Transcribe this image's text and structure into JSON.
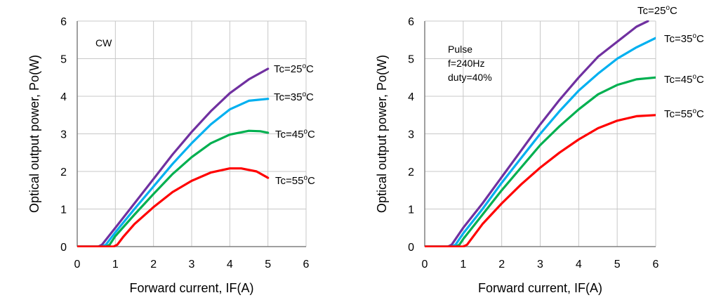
{
  "chart_data": [
    {
      "type": "line",
      "annotation": [
        "CW"
      ],
      "xlabel": "Forward current, IF(A)",
      "ylabel": "Optical output power, Po(W)",
      "xlim": [
        0,
        6
      ],
      "ylim": [
        0,
        6
      ],
      "xticks": [
        "0",
        "1",
        "2",
        "3",
        "4",
        "5",
        "6"
      ],
      "yticks": [
        "0",
        "1",
        "2",
        "3",
        "4",
        "5",
        "6"
      ],
      "grid": true,
      "series": [
        {
          "name": "Tc=25oC",
          "color": "#7030a0",
          "points": [
            [
              0,
              0
            ],
            [
              0.55,
              0
            ],
            [
              0.65,
              0.05
            ],
            [
              1,
              0.5
            ],
            [
              1.5,
              1.15
            ],
            [
              2,
              1.8
            ],
            [
              2.5,
              2.45
            ],
            [
              3,
              3.05
            ],
            [
              3.5,
              3.6
            ],
            [
              4,
              4.08
            ],
            [
              4.5,
              4.45
            ],
            [
              5,
              4.73
            ]
          ]
        },
        {
          "name": "Tc=35oC",
          "color": "#00b0f0",
          "points": [
            [
              0,
              0
            ],
            [
              0.65,
              0
            ],
            [
              0.75,
              0.05
            ],
            [
              1,
              0.38
            ],
            [
              1.5,
              1.0
            ],
            [
              2,
              1.6
            ],
            [
              2.5,
              2.2
            ],
            [
              3,
              2.75
            ],
            [
              3.5,
              3.25
            ],
            [
              4,
              3.65
            ],
            [
              4.5,
              3.88
            ],
            [
              5,
              3.93
            ]
          ]
        },
        {
          "name": "Tc=45oC",
          "color": "#00b050",
          "points": [
            [
              0,
              0
            ],
            [
              0.75,
              0
            ],
            [
              0.85,
              0.05
            ],
            [
              1,
              0.28
            ],
            [
              1.5,
              0.85
            ],
            [
              2,
              1.4
            ],
            [
              2.5,
              1.93
            ],
            [
              3,
              2.38
            ],
            [
              3.5,
              2.75
            ],
            [
              4,
              2.98
            ],
            [
              4.5,
              3.08
            ],
            [
              4.8,
              3.07
            ],
            [
              5,
              3.03
            ]
          ]
        },
        {
          "name": "Tc=55oC",
          "color": "#ff0000",
          "points": [
            [
              0,
              0
            ],
            [
              0.95,
              0
            ],
            [
              1.05,
              0.05
            ],
            [
              1.2,
              0.25
            ],
            [
              1.5,
              0.6
            ],
            [
              2,
              1.05
            ],
            [
              2.5,
              1.45
            ],
            [
              3,
              1.75
            ],
            [
              3.5,
              1.97
            ],
            [
              4,
              2.08
            ],
            [
              4.3,
              2.08
            ],
            [
              4.7,
              2.0
            ],
            [
              5,
              1.83
            ]
          ]
        }
      ]
    },
    {
      "type": "line",
      "annotation": [
        "Pulse",
        "f=240Hz",
        "duty=40%"
      ],
      "xlabel": "Forward current, IF(A)",
      "ylabel": "Optical output power, Po(W)",
      "xlim": [
        0,
        6
      ],
      "ylim": [
        0,
        6
      ],
      "xticks": [
        "0",
        "1",
        "2",
        "3",
        "4",
        "5",
        "6"
      ],
      "yticks": [
        "0",
        "1",
        "2",
        "3",
        "4",
        "5",
        "6"
      ],
      "grid": true,
      "series": [
        {
          "name": "Tc=25oC",
          "color": "#7030a0",
          "points": [
            [
              0,
              0
            ],
            [
              0.6,
              0
            ],
            [
              0.7,
              0.05
            ],
            [
              1,
              0.5
            ],
            [
              1.5,
              1.15
            ],
            [
              2,
              1.85
            ],
            [
              2.5,
              2.55
            ],
            [
              3,
              3.25
            ],
            [
              3.5,
              3.9
            ],
            [
              4,
              4.5
            ],
            [
              4.5,
              5.05
            ],
            [
              5,
              5.45
            ],
            [
              5.5,
              5.85
            ],
            [
              5.8,
              6.0
            ]
          ]
        },
        {
          "name": "Tc=35oC",
          "color": "#00b0f0",
          "points": [
            [
              0,
              0
            ],
            [
              0.7,
              0
            ],
            [
              0.8,
              0.05
            ],
            [
              1,
              0.35
            ],
            [
              1.5,
              1.0
            ],
            [
              2,
              1.7
            ],
            [
              2.5,
              2.35
            ],
            [
              3,
              3.0
            ],
            [
              3.5,
              3.6
            ],
            [
              4,
              4.15
            ],
            [
              4.5,
              4.6
            ],
            [
              5,
              5.0
            ],
            [
              5.5,
              5.3
            ],
            [
              6,
              5.55
            ]
          ]
        },
        {
          "name": "Tc=45oC",
          "color": "#00b050",
          "points": [
            [
              0,
              0
            ],
            [
              0.8,
              0
            ],
            [
              0.9,
              0.05
            ],
            [
              1,
              0.2
            ],
            [
              1.5,
              0.85
            ],
            [
              2,
              1.5
            ],
            [
              2.5,
              2.1
            ],
            [
              3,
              2.7
            ],
            [
              3.5,
              3.2
            ],
            [
              4,
              3.65
            ],
            [
              4.5,
              4.05
            ],
            [
              5,
              4.3
            ],
            [
              5.5,
              4.45
            ],
            [
              6,
              4.5
            ]
          ]
        },
        {
          "name": "Tc=55oC",
          "color": "#ff0000",
          "points": [
            [
              0,
              0
            ],
            [
              1.0,
              0
            ],
            [
              1.1,
              0.05
            ],
            [
              1.5,
              0.6
            ],
            [
              2,
              1.15
            ],
            [
              2.5,
              1.65
            ],
            [
              3,
              2.1
            ],
            [
              3.5,
              2.5
            ],
            [
              4,
              2.85
            ],
            [
              4.5,
              3.15
            ],
            [
              5,
              3.35
            ],
            [
              5.5,
              3.47
            ],
            [
              6,
              3.5
            ]
          ]
        }
      ]
    }
  ]
}
